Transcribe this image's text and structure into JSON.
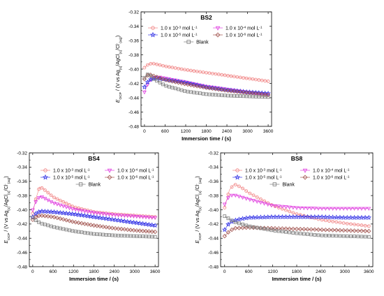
{
  "colors": {
    "c1e3": "#f08080",
    "c1e4": "#e040e0",
    "c1e5": "#3434e6",
    "c1e6": "#a0524d",
    "blank": "#7a7a7a"
  },
  "chart_data": [
    {
      "type": "scatter",
      "title": "BS2",
      "xlabel": "Immersion time / (s)",
      "ylabel": "E_OCP / (V vs Ag(s)/AgCl(s)/Cl⁻(aq))",
      "xlim": [
        -100,
        3700
      ],
      "ylim": [
        -0.48,
        -0.32
      ],
      "xticks": [
        0,
        600,
        1200,
        1800,
        2400,
        3000,
        3600
      ],
      "yticks": [
        -0.48,
        -0.46,
        -0.44,
        -0.42,
        -0.4,
        -0.38,
        -0.36,
        -0.34,
        -0.32
      ],
      "legend": {
        "rows": [
          [
            {
              "series": 0,
              "sub": [
                {
                  "t": "1.0 x 10"
                },
                {
                  "t": "-3",
                  "s": "sup"
                },
                {
                  "t": " mol L"
                },
                {
                  "t": "-1",
                  "s": "sup"
                }
              ]
            },
            {
              "series": 1,
              "sub": [
                {
                  "t": "1.0 x 10"
                },
                {
                  "t": "-4",
                  "s": "sup"
                },
                {
                  "t": " mol L"
                },
                {
                  "t": "-1",
                  "s": "sup"
                }
              ]
            }
          ],
          [
            {
              "series": 2,
              "sub": [
                {
                  "t": "1.0 x 10"
                },
                {
                  "t": "-5",
                  "s": "sup"
                },
                {
                  "t": " mol L"
                },
                {
                  "t": "-1",
                  "s": "sup"
                }
              ]
            },
            {
              "series": 3,
              "sub": [
                {
                  "t": "1.0 x 10"
                },
                {
                  "t": "-6",
                  "s": "sup"
                },
                {
                  "t": " mol L"
                },
                {
                  "t": "-1",
                  "s": "sup"
                }
              ]
            }
          ],
          [
            {
              "series": 4,
              "sub": [
                {
                  "t": "Blank"
                }
              ]
            }
          ]
        ]
      },
      "series": [
        {
          "name": "1.0 x 10-3 mol L-1",
          "marker": "circle",
          "color_key": "c1e3",
          "x": [
            0,
            120,
            240,
            600,
            1200,
            1800,
            2400,
            3000,
            3600
          ],
          "y": [
            -0.398,
            -0.393,
            -0.392,
            -0.396,
            -0.401,
            -0.405,
            -0.409,
            -0.413,
            -0.417
          ]
        },
        {
          "name": "1.0 x 10-4 mol L-1",
          "marker": "triangle-down",
          "color_key": "c1e4",
          "x": [
            0,
            120,
            240,
            420,
            1200,
            1800,
            2400,
            3000,
            3600
          ],
          "y": [
            -0.432,
            -0.418,
            -0.412,
            -0.411,
            -0.418,
            -0.424,
            -0.428,
            -0.432,
            -0.435
          ]
        },
        {
          "name": "1.0 x 10-5 mol L-1",
          "marker": "star",
          "color_key": "c1e5",
          "x": [
            0,
            120,
            240,
            420,
            1200,
            1800,
            2400,
            3000,
            3600
          ],
          "y": [
            -0.425,
            -0.416,
            -0.413,
            -0.413,
            -0.419,
            -0.425,
            -0.429,
            -0.432,
            -0.434
          ]
        },
        {
          "name": "1.0 x 10-6 mol L-1",
          "marker": "diamond",
          "color_key": "c1e6",
          "x": [
            0,
            120,
            240,
            600,
            1200,
            1800,
            2400,
            3000,
            3600
          ],
          "y": [
            -0.414,
            -0.407,
            -0.409,
            -0.415,
            -0.421,
            -0.426,
            -0.43,
            -0.433,
            -0.436
          ]
        },
        {
          "name": "Blank",
          "marker": "square",
          "color_key": "blank",
          "x": [
            0,
            120,
            240,
            600,
            1200,
            1800,
            2400,
            3000,
            3600
          ],
          "y": [
            -0.412,
            -0.406,
            -0.413,
            -0.423,
            -0.431,
            -0.435,
            -0.437,
            -0.438,
            -0.439
          ]
        }
      ]
    },
    {
      "type": "scatter",
      "title": "BS4",
      "xlabel": "Immersion time / (s)",
      "ylabel": "E_OCP / (V vs Ag(s)/AgCl(s)/Cl⁻(aq))",
      "xlim": [
        -100,
        3700
      ],
      "ylim": [
        -0.48,
        -0.32
      ],
      "xticks": [
        0,
        600,
        1200,
        1800,
        2400,
        3000,
        3600
      ],
      "yticks": [
        -0.48,
        -0.46,
        -0.44,
        -0.42,
        -0.4,
        -0.38,
        -0.36,
        -0.34,
        -0.32
      ],
      "legend": {
        "rows": [
          [
            {
              "series": 0,
              "sub": [
                {
                  "t": "1.0 x 10"
                },
                {
                  "t": "-3",
                  "s": "sup"
                },
                {
                  "t": " mol L"
                },
                {
                  "t": "-1",
                  "s": "sup"
                }
              ]
            },
            {
              "series": 1,
              "sub": [
                {
                  "t": "1.0 x 10"
                },
                {
                  "t": "-4",
                  "s": "sup"
                },
                {
                  "t": " mol L"
                },
                {
                  "t": "-1",
                  "s": "sup"
                }
              ]
            }
          ],
          [
            {
              "series": 2,
              "sub": [
                {
                  "t": "1.0 x 10"
                },
                {
                  "t": "-5",
                  "s": "sup"
                },
                {
                  "t": " mol L"
                },
                {
                  "t": "-1",
                  "s": "sup"
                }
              ]
            },
            {
              "series": 3,
              "sub": [
                {
                  "t": "1.0 x 10"
                },
                {
                  "t": "-6",
                  "s": "sup"
                },
                {
                  "t": " mol L"
                },
                {
                  "t": "-1",
                  "s": "sup"
                }
              ]
            }
          ],
          [
            {
              "series": 4,
              "sub": [
                {
                  "t": "Blank"
                }
              ]
            }
          ]
        ]
      },
      "series": [
        {
          "name": "1.0 x 10-3 mol L-1",
          "marker": "circle",
          "color_key": "c1e3",
          "x": [
            0,
            90,
            200,
            300,
            600,
            1200,
            1800,
            2400,
            3000,
            3600
          ],
          "y": [
            -0.405,
            -0.385,
            -0.368,
            -0.37,
            -0.382,
            -0.396,
            -0.403,
            -0.406,
            -0.408,
            -0.41
          ]
        },
        {
          "name": "1.0 x 10-4 mol L-1",
          "marker": "triangle-down",
          "color_key": "c1e4",
          "x": [
            0,
            120,
            240,
            600,
            1200,
            1800,
            2400,
            3000,
            3600
          ],
          "y": [
            -0.4,
            -0.385,
            -0.381,
            -0.39,
            -0.399,
            -0.404,
            -0.407,
            -0.409,
            -0.411
          ]
        },
        {
          "name": "1.0 x 10-5 mol L-1",
          "marker": "star",
          "color_key": "c1e5",
          "x": [
            0,
            120,
            240,
            600,
            1200,
            1800,
            2400,
            3000,
            3600
          ],
          "y": [
            -0.41,
            -0.404,
            -0.402,
            -0.403,
            -0.406,
            -0.41,
            -0.414,
            -0.418,
            -0.422
          ]
        },
        {
          "name": "1.0 x 10-6 mol L-1",
          "marker": "diamond",
          "color_key": "c1e6",
          "x": [
            0,
            120,
            240,
            600,
            1200,
            1800,
            2400,
            3000,
            3600
          ],
          "y": [
            -0.414,
            -0.409,
            -0.408,
            -0.41,
            -0.417,
            -0.422,
            -0.426,
            -0.429,
            -0.431
          ]
        },
        {
          "name": "Blank",
          "marker": "square",
          "color_key": "blank",
          "x": [
            0,
            120,
            240,
            600,
            1200,
            1800,
            2400,
            3000,
            3600
          ],
          "y": [
            -0.411,
            -0.416,
            -0.419,
            -0.424,
            -0.43,
            -0.434,
            -0.436,
            -0.437,
            -0.438
          ]
        }
      ]
    },
    {
      "type": "scatter",
      "title": "BS8",
      "xlabel": "Immersion time / (s)",
      "ylabel": "E_OCP / (V vs Ag(s)/AgCl(s)/Cl⁻(aq))",
      "xlim": [
        -100,
        3700
      ],
      "ylim": [
        -0.48,
        -0.32
      ],
      "xticks": [
        0,
        600,
        1200,
        1800,
        2400,
        3000,
        3600
      ],
      "yticks": [
        -0.48,
        -0.46,
        -0.44,
        -0.42,
        -0.4,
        -0.38,
        -0.36,
        -0.34,
        -0.32
      ],
      "legend": {
        "rows": [
          [
            {
              "series": 0,
              "sub": [
                {
                  "t": "1.0 x 10"
                },
                {
                  "t": "-3",
                  "s": "sup"
                },
                {
                  "t": " mol L"
                },
                {
                  "t": "-1",
                  "s": "sup"
                }
              ]
            },
            {
              "series": 1,
              "sub": [
                {
                  "t": "1.0 x 10"
                },
                {
                  "t": "-4",
                  "s": "sup"
                },
                {
                  "t": " mol L"
                },
                {
                  "t": "-1",
                  "s": "sup"
                }
              ]
            }
          ],
          [
            {
              "series": 2,
              "sub": [
                {
                  "t": "1.0 x 10"
                },
                {
                  "t": "-5",
                  "s": "sup"
                },
                {
                  "t": " mol L"
                },
                {
                  "t": "-1",
                  "s": "sup"
                }
              ]
            },
            {
              "series": 3,
              "sub": [
                {
                  "t": "1.0 x 10"
                },
                {
                  "t": "-6",
                  "s": "sup"
                },
                {
                  "t": " mol L"
                },
                {
                  "t": "-1",
                  "s": "sup"
                }
              ]
            }
          ],
          [
            {
              "series": 4,
              "sub": [
                {
                  "t": "Blank"
                }
              ]
            }
          ]
        ]
      },
      "series": [
        {
          "name": "1.0 x 10-3 mol L-1",
          "marker": "circle",
          "color_key": "c1e3",
          "x": [
            0,
            120,
            240,
            400,
            600,
            1200,
            1800,
            2400,
            3000,
            3600
          ],
          "y": [
            -0.397,
            -0.372,
            -0.364,
            -0.368,
            -0.376,
            -0.394,
            -0.406,
            -0.414,
            -0.419,
            -0.423
          ]
        },
        {
          "name": "1.0 x 10-4 mol L-1",
          "marker": "triangle-down",
          "color_key": "c1e4",
          "x": [
            0,
            120,
            240,
            600,
            1200,
            1800,
            2400,
            3000,
            3600
          ],
          "y": [
            -0.392,
            -0.38,
            -0.379,
            -0.385,
            -0.394,
            -0.397,
            -0.398,
            -0.398,
            -0.398
          ]
        },
        {
          "name": "1.0 x 10-5 mol L-1",
          "marker": "star",
          "color_key": "c1e5",
          "x": [
            0,
            120,
            300,
            600,
            1200,
            1800,
            2400,
            3000,
            3600
          ],
          "y": [
            -0.428,
            -0.418,
            -0.414,
            -0.411,
            -0.41,
            -0.41,
            -0.41,
            -0.411,
            -0.411
          ]
        },
        {
          "name": "1.0 x 10-6 mol L-1",
          "marker": "diamond",
          "color_key": "c1e6",
          "x": [
            0,
            120,
            240,
            600,
            1200,
            1800,
            2400,
            3000,
            3600
          ],
          "y": [
            -0.437,
            -0.43,
            -0.426,
            -0.425,
            -0.426,
            -0.427,
            -0.428,
            -0.429,
            -0.43
          ]
        },
        {
          "name": "Blank",
          "marker": "square",
          "color_key": "blank",
          "x": [
            0,
            120,
            240,
            600,
            1200,
            1800,
            2400,
            3000,
            3600
          ],
          "y": [
            -0.409,
            -0.413,
            -0.417,
            -0.423,
            -0.429,
            -0.433,
            -0.436,
            -0.437,
            -0.438
          ]
        }
      ]
    }
  ]
}
